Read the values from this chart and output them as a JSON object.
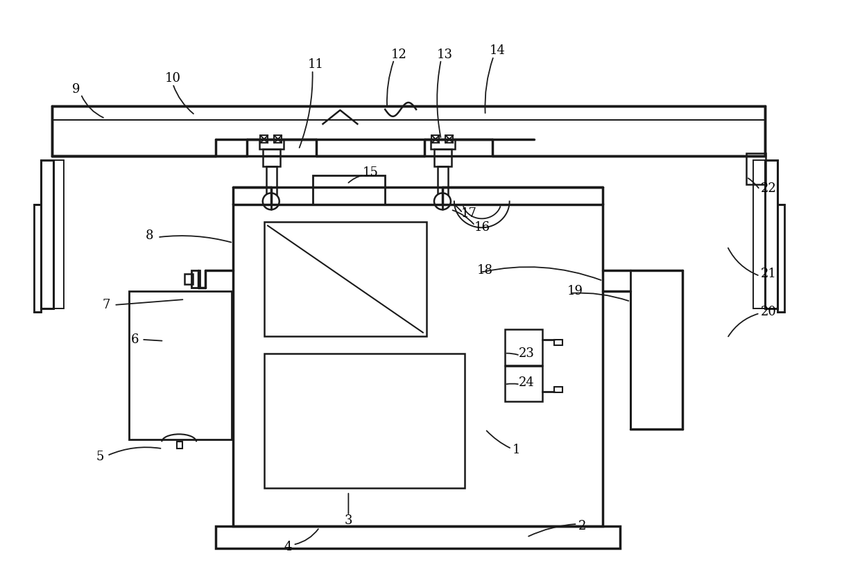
{
  "bg_color": "#ffffff",
  "lc": "#1a1a1a",
  "lw": 2.0,
  "lt": 1.4,
  "fs": 13,
  "figw": 12.4,
  "figh": 8.41,
  "dpi": 100
}
